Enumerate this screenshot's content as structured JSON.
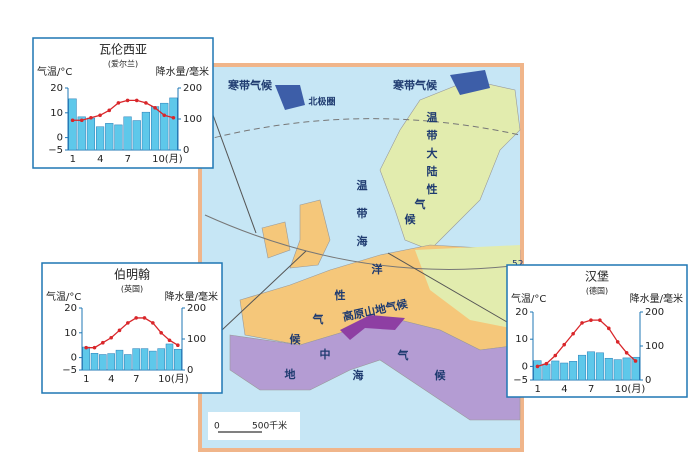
{
  "map": {
    "labels": {
      "polar1": "寒带气候",
      "polar2": "寒带气候",
      "arctic": "北极圈",
      "continental": "温带大陆性气候",
      "oceanic": "温带海洋性气候",
      "highland": "高原山地气候",
      "mediterranean": "地中海气候",
      "lat52": "52"
    },
    "scale": {
      "zero": "0",
      "label": "500千米"
    }
  },
  "chart_data": [
    {
      "type": "combo",
      "title": "瓦伦西亚",
      "subtitle": "(爱尔兰)",
      "y_label": "气温/°C",
      "y2_label": "降水量/毫米",
      "categories": [
        "1",
        null,
        null,
        "4",
        null,
        null,
        "7",
        null,
        null,
        "10(月)",
        null,
        null
      ],
      "ylim": [
        -5,
        20
      ],
      "yticks": [
        {
          "value": -5,
          "label": "−5"
        },
        0,
        10,
        20
      ],
      "y2lim": [
        0,
        200
      ],
      "y2ticks": [
        0,
        100,
        200
      ],
      "series": [
        {
          "type": "bar",
          "axis": "y2",
          "color": "#5ec8ea",
          "values": [
            165,
            107,
            103,
            75,
            86,
            81,
            107,
            95,
            122,
            140,
            151,
            168
          ]
        },
        {
          "type": "line",
          "color": "#d9262a",
          "values": [
            7,
            7,
            8,
            9,
            11,
            14,
            15,
            15,
            14,
            12,
            9,
            8
          ]
        }
      ]
    },
    {
      "type": "combo",
      "title": "伯明翰",
      "subtitle": "(英国)",
      "y_label": "气温/°C",
      "y2_label": "降水量/毫米",
      "categories": [
        "1",
        null,
        null,
        "4",
        null,
        null,
        "7",
        null,
        null,
        "10(月)",
        null,
        null
      ],
      "ylim": [
        -5,
        20
      ],
      "yticks": [
        {
          "value": -5,
          "label": "−5"
        },
        0,
        10,
        20
      ],
      "y2lim": [
        0,
        200
      ],
      "y2ticks": [
        0,
        100,
        200
      ],
      "series": [
        {
          "type": "bar",
          "axis": "y2",
          "color": "#5ec8ea",
          "values": [
            74,
            54,
            50,
            53,
            64,
            50,
            69,
            69,
            61,
            69,
            84,
            67
          ]
        },
        {
          "type": "line",
          "color": "#d9262a",
          "values": [
            4,
            4,
            6,
            8,
            11,
            14,
            16,
            16,
            14,
            10,
            7,
            5
          ]
        }
      ]
    },
    {
      "type": "combo",
      "title": "汉堡",
      "subtitle": "(德国)",
      "y_label": "气温/°C",
      "y2_label": "降水量/毫米",
      "categories": [
        "1",
        null,
        null,
        "4",
        null,
        null,
        "7",
        null,
        null,
        "10(月)",
        null,
        null
      ],
      "ylim": [
        -5,
        20
      ],
      "yticks": [
        {
          "value": -5,
          "label": "−5"
        },
        0,
        10,
        20
      ],
      "y2lim": [
        0,
        200
      ],
      "y2ticks": [
        0,
        100,
        200
      ],
      "series": [
        {
          "type": "bar",
          "axis": "y2",
          "color": "#5ec8ea",
          "values": [
            57,
            47,
            56,
            50,
            55,
            73,
            83,
            80,
            64,
            60,
            65,
            67
          ]
        },
        {
          "type": "line",
          "color": "#d9262a",
          "values": [
            0,
            1,
            4,
            8,
            12,
            16,
            17,
            17,
            14,
            9,
            5,
            2
          ]
        }
      ]
    }
  ]
}
